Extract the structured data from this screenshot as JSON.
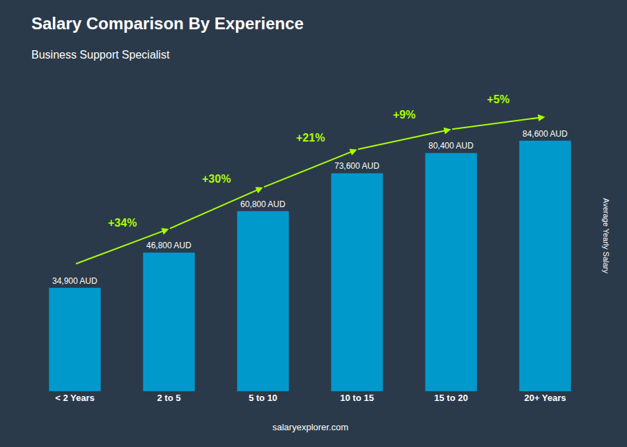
{
  "chart_data": {
    "type": "bar",
    "title": "Salary Comparison By Experience",
    "subtitle": "Business Support Specialist",
    "ylabel": "Average Yearly Salary",
    "footer": "salaryexplorer.com",
    "categories": [
      "< 2 Years",
      "2 to 5",
      "5 to 10",
      "10 to 15",
      "15 to 20",
      "20+ Years"
    ],
    "values": [
      34900,
      46800,
      60800,
      73600,
      80400,
      84600
    ],
    "value_labels": [
      "34,900 AUD",
      "46,800 AUD",
      "60,800 AUD",
      "73,600 AUD",
      "80,400 AUD",
      "84,600 AUD"
    ],
    "data_labels": true,
    "color": "#0099cc",
    "ylim": [
      0,
      105000
    ],
    "grid": false,
    "tick_labels": "x",
    "annotations": [
      {
        "text": "+34%",
        "color": "#aaff00"
      },
      {
        "text": "+30%",
        "color": "#aaff00"
      },
      {
        "text": "+21%",
        "color": "#aaff00"
      },
      {
        "text": "+9%",
        "color": "#aaff00"
      },
      {
        "text": "+5%",
        "color": "#aaff00"
      }
    ]
  }
}
